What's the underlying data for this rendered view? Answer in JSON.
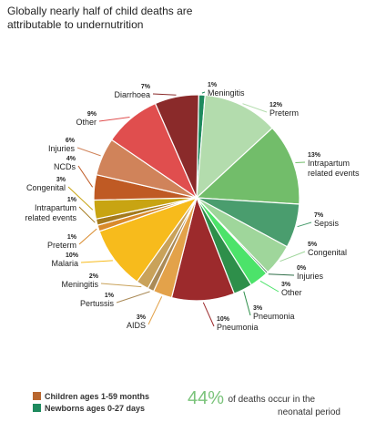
{
  "chart_data": {
    "type": "pie",
    "title": "Globally nearly half of child deaths are attributable to undernutrition",
    "slices": [
      {
        "label": "Meningitis",
        "percent_label": "1%",
        "value": 1,
        "group": "newborn",
        "color": "#1e8a5e"
      },
      {
        "label": "Preterm",
        "percent_label": "12%",
        "value": 12,
        "group": "newborn",
        "color": "#b3dcad"
      },
      {
        "label": "Intrapartum related events",
        "percent_label": "13%",
        "value": 13,
        "group": "newborn",
        "color": "#72bd6a"
      },
      {
        "label": "Sepsis",
        "percent_label": "7%",
        "value": 7,
        "group": "newborn",
        "color": "#4a9d6e"
      },
      {
        "label": "Congenital",
        "percent_label": "5%",
        "value": 5,
        "group": "newborn",
        "color": "#9fd69b"
      },
      {
        "label": "Injuries",
        "percent_label": "0%",
        "value": 0.3,
        "group": "newborn",
        "color": "#2f6e48"
      },
      {
        "label": "Other",
        "percent_label": "3%",
        "value": 3,
        "group": "newborn",
        "color": "#4ce36a"
      },
      {
        "label": "Pneumonia",
        "percent_label": "3%",
        "value": 3,
        "group": "newborn",
        "color": "#2e8f4a"
      },
      {
        "label": "Pneumonia",
        "percent_label": "10%",
        "value": 10,
        "group": "child",
        "color": "#9c2a2c"
      },
      {
        "label": "AIDS",
        "percent_label": "3%",
        "value": 3,
        "group": "child",
        "color": "#e3a24a"
      },
      {
        "label": "Pertussis",
        "percent_label": "1%",
        "value": 1,
        "group": "child",
        "color": "#aa8a57"
      },
      {
        "label": "Meningitis",
        "percent_label": "2%",
        "value": 2,
        "group": "child",
        "color": "#c9a25a"
      },
      {
        "label": "Malaria",
        "percent_label": "10%",
        "value": 10,
        "group": "child",
        "color": "#f7bb1c"
      },
      {
        "label": "Preterm",
        "percent_label": "1%",
        "value": 1,
        "group": "child",
        "color": "#d98a2b"
      },
      {
        "label": "Intrapartum related events",
        "percent_label": "1%",
        "value": 1,
        "group": "child",
        "color": "#a47a1c"
      },
      {
        "label": "Congenital",
        "percent_label": "3%",
        "value": 3,
        "group": "child",
        "color": "#c8a412"
      },
      {
        "label": "NCDs",
        "percent_label": "4%",
        "value": 4,
        "group": "child",
        "color": "#bf5a24"
      },
      {
        "label": "Injuries",
        "percent_label": "6%",
        "value": 6,
        "group": "child",
        "color": "#d0835a"
      },
      {
        "label": "Other",
        "percent_label": "9%",
        "value": 9,
        "group": "child",
        "color": "#e04e4e"
      },
      {
        "label": "Diarrhoea",
        "percent_label": "7%",
        "value": 7,
        "group": "child",
        "color": "#8a2a2a"
      }
    ],
    "legend": [
      {
        "label": "Children ages 1-59 months",
        "color": "#b8662e"
      },
      {
        "label": "Newborns ages 0-27 days",
        "color": "#1e8a5e"
      }
    ],
    "legend_placement": "bottom-left"
  },
  "callout": {
    "percent": "44%",
    "text_line1": "of deaths occur in the",
    "text_line2": "neonatal period"
  }
}
